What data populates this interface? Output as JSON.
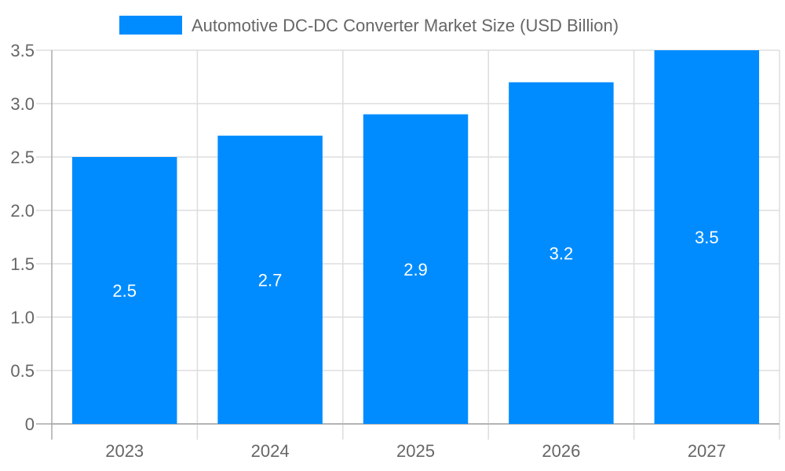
{
  "chart_data": {
    "type": "bar",
    "categories": [
      "2023",
      "2024",
      "2025",
      "2026",
      "2027"
    ],
    "series": [
      {
        "name": "Automotive DC-DC Converter Market Size (USD Billion)",
        "values": [
          2.5,
          2.7,
          2.9,
          3.2,
          3.5
        ],
        "color": "#008cff"
      }
    ],
    "data_labels": [
      "2.5",
      "2.7",
      "2.9",
      "3.2",
      "3.5"
    ],
    "yticks": [
      "0",
      "0.5",
      "1.0",
      "1.5",
      "2.0",
      "2.5",
      "3.0",
      "3.5"
    ],
    "ylim": [
      0,
      3.5
    ],
    "grid": true,
    "legend": "top"
  }
}
